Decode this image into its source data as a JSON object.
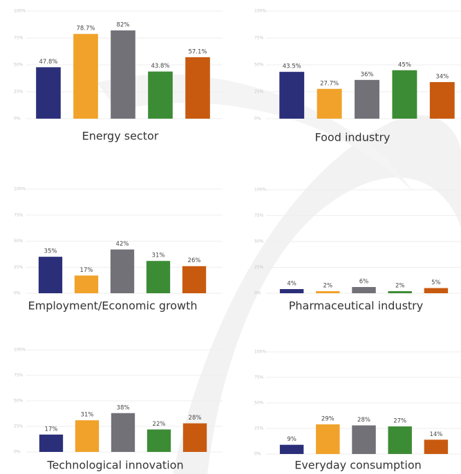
{
  "chart_data": [
    {
      "type": "bar",
      "title": "Energy sector",
      "values": [
        47.8,
        78.7,
        82,
        43.8,
        57.1
      ],
      "value_labels": [
        "47.8%",
        "78.7%",
        "82%",
        "43.8%",
        "57.1%"
      ],
      "colors": [
        "#2b2f7a",
        "#f0a22a",
        "#727178",
        "#3c8c35",
        "#c85a10"
      ],
      "ylim": [
        0,
        100
      ],
      "yticks": [
        {
          "value": 0,
          "label": "0%"
        },
        {
          "value": 25,
          "label": "25%"
        },
        {
          "value": 50,
          "label": "50%"
        },
        {
          "value": 75,
          "label": "75%"
        },
        {
          "value": 100,
          "label": "100%"
        }
      ],
      "grid": true
    },
    {
      "type": "bar",
      "title": "Food industry",
      "values": [
        43.5,
        27.7,
        36,
        45,
        34
      ],
      "value_labels": [
        "43.5%",
        "27.7%",
        "36%",
        "45%",
        "34%"
      ],
      "colors": [
        "#2b2f7a",
        "#f0a22a",
        "#727178",
        "#3c8c35",
        "#c85a10"
      ],
      "ylim": [
        0,
        100
      ],
      "yticks": [
        {
          "value": 0,
          "label": "0%"
        },
        {
          "value": 25,
          "label": "25%"
        },
        {
          "value": 50,
          "label": "50%"
        },
        {
          "value": 75,
          "label": "75%"
        },
        {
          "value": 100,
          "label": "100%"
        }
      ],
      "grid": true
    },
    {
      "type": "bar",
      "title": "Employment/Economic growth",
      "values": [
        35,
        17,
        42,
        31,
        26
      ],
      "value_labels": [
        "35%",
        "17%",
        "42%",
        "31%",
        "26%"
      ],
      "colors": [
        "#2b2f7a",
        "#f0a22a",
        "#727178",
        "#3c8c35",
        "#c85a10"
      ],
      "ylim": [
        0,
        100
      ],
      "yticks": [
        {
          "value": 0,
          "label": "0%"
        },
        {
          "value": 25,
          "label": "25%"
        },
        {
          "value": 50,
          "label": "50%"
        },
        {
          "value": 75,
          "label": "75%"
        },
        {
          "value": 100,
          "label": "100%"
        }
      ],
      "grid": true
    },
    {
      "type": "bar",
      "title": "Pharmaceutical industry",
      "values": [
        4,
        2,
        6,
        2,
        5
      ],
      "value_labels": [
        "4%",
        "2%",
        "6%",
        "2%",
        "5%"
      ],
      "colors": [
        "#2b2f7a",
        "#f0a22a",
        "#727178",
        "#3c8c35",
        "#c85a10"
      ],
      "ylim": [
        0,
        100
      ],
      "yticks": [
        {
          "value": 0,
          "label": "0%"
        },
        {
          "value": 25,
          "label": "25%"
        },
        {
          "value": 50,
          "label": "50%"
        },
        {
          "value": 75,
          "label": "75%"
        },
        {
          "value": 100,
          "label": "100%"
        }
      ],
      "grid": true
    },
    {
      "type": "bar",
      "title": "Technological innovation",
      "values": [
        17,
        31,
        38,
        22,
        28
      ],
      "value_labels": [
        "17%",
        "31%",
        "38%",
        "22%",
        "28%"
      ],
      "colors": [
        "#2b2f7a",
        "#f0a22a",
        "#727178",
        "#3c8c35",
        "#c85a10"
      ],
      "ylim": [
        0,
        100
      ],
      "yticks": [
        {
          "value": 0,
          "label": "0%"
        },
        {
          "value": 25,
          "label": "25%"
        },
        {
          "value": 50,
          "label": "50%"
        },
        {
          "value": 75,
          "label": "75%"
        },
        {
          "value": 100,
          "label": "100%"
        }
      ],
      "grid": true
    },
    {
      "type": "bar",
      "title": "Everyday consumption",
      "values": [
        9,
        29,
        28,
        27,
        14
      ],
      "value_labels": [
        "9%",
        "29%",
        "28%",
        "27%",
        "14%"
      ],
      "colors": [
        "#2b2f7a",
        "#f0a22a",
        "#727178",
        "#3c8c35",
        "#c85a10"
      ],
      "ylim": [
        0,
        100
      ],
      "yticks": [
        {
          "value": 0,
          "label": "0%"
        },
        {
          "value": 25,
          "label": "25%"
        },
        {
          "value": 50,
          "label": "50%"
        },
        {
          "value": 75,
          "label": "75%"
        },
        {
          "value": 100,
          "label": "100%"
        }
      ],
      "grid": true
    }
  ]
}
